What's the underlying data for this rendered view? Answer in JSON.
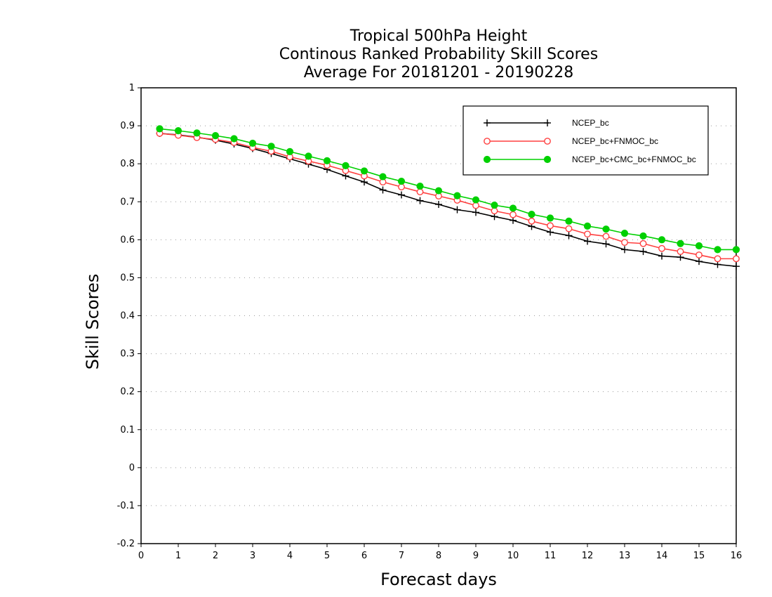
{
  "chart_data": {
    "type": "line",
    "title_lines": [
      "Tropical 500hPa Height",
      "Continous Ranked Probability Skill Scores",
      "Average For 20181201 - 20190228"
    ],
    "xlabel": "Forecast days",
    "ylabel": "Skill Scores",
    "xlim": [
      0,
      16
    ],
    "ylim": [
      -0.2,
      1
    ],
    "xticks": [
      0,
      1,
      2,
      3,
      4,
      5,
      6,
      7,
      8,
      9,
      10,
      11,
      12,
      13,
      14,
      15,
      16
    ],
    "yticks": [
      -0.2,
      -0.1,
      0,
      0.1,
      0.2,
      0.3,
      0.4,
      0.5,
      0.6,
      0.7,
      0.8,
      0.9,
      1
    ],
    "ytick_labels": [
      "-0.2",
      "-0.1",
      "0",
      "0.1",
      "0.2",
      "0.3",
      "0.4",
      "0.5",
      "0.6",
      "0.7",
      "0.8",
      "0.9",
      "1"
    ],
    "grid": true,
    "legend_position": "top-right",
    "x": [
      0.5,
      1,
      1.5,
      2,
      2.5,
      3,
      3.5,
      4,
      4.5,
      5,
      5.5,
      6,
      6.5,
      7,
      7.5,
      8,
      8.5,
      9,
      9.5,
      10,
      10.5,
      11,
      11.5,
      12,
      12.5,
      13,
      13.5,
      14,
      14.5,
      15,
      15.5,
      16
    ],
    "series": [
      {
        "name": "NCEP_bc",
        "color": "#000000",
        "marker": "plus",
        "values": [
          0.88,
          0.876,
          0.87,
          0.862,
          0.852,
          0.84,
          0.827,
          0.813,
          0.799,
          0.785,
          0.768,
          0.752,
          0.731,
          0.718,
          0.703,
          0.693,
          0.679,
          0.672,
          0.661,
          0.651,
          0.635,
          0.62,
          0.611,
          0.596,
          0.589,
          0.574,
          0.569,
          0.557,
          0.554,
          0.543,
          0.535,
          0.53
        ]
      },
      {
        "name": "NCEP_bc+FNMOC_bc",
        "color": "#ff4040",
        "marker": "open-circle",
        "values": [
          0.88,
          0.875,
          0.869,
          0.864,
          0.856,
          0.843,
          0.833,
          0.818,
          0.807,
          0.796,
          0.782,
          0.768,
          0.752,
          0.739,
          0.726,
          0.715,
          0.704,
          0.69,
          0.676,
          0.666,
          0.649,
          0.637,
          0.629,
          0.615,
          0.609,
          0.593,
          0.59,
          0.577,
          0.569,
          0.56,
          0.55,
          0.55
        ]
      },
      {
        "name": "NCEP_bc+CMC_bc+FNMOC_bc",
        "color": "#00d000",
        "marker": "filled-circle",
        "values": [
          0.892,
          0.887,
          0.881,
          0.874,
          0.866,
          0.854,
          0.846,
          0.832,
          0.82,
          0.808,
          0.795,
          0.781,
          0.766,
          0.754,
          0.741,
          0.729,
          0.716,
          0.705,
          0.691,
          0.683,
          0.667,
          0.657,
          0.649,
          0.636,
          0.628,
          0.617,
          0.61,
          0.6,
          0.59,
          0.584,
          0.574,
          0.574
        ]
      }
    ]
  }
}
